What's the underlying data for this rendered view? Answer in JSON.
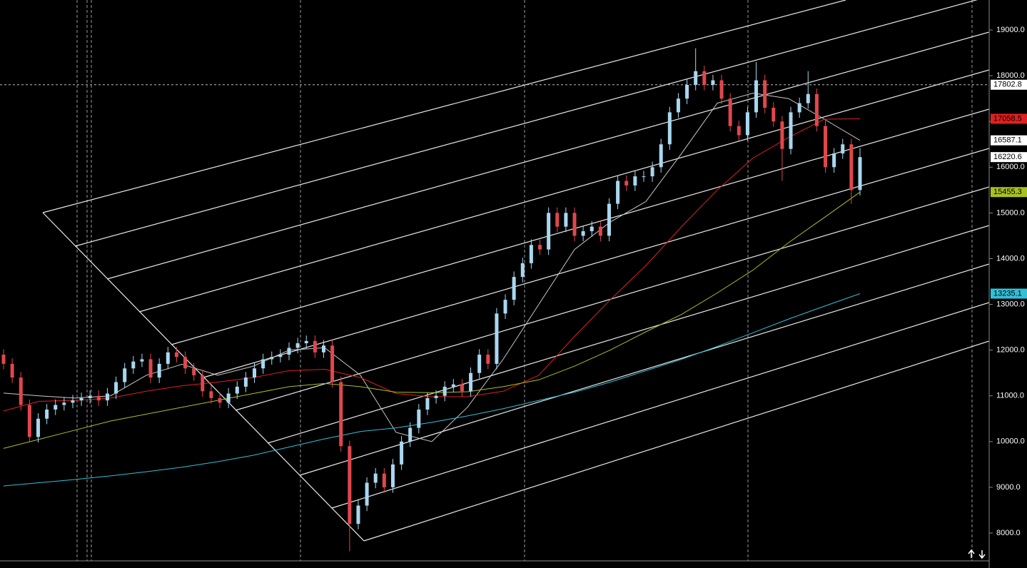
{
  "chart_data": {
    "type": "candlestick",
    "up_color": "#a8d8f0",
    "down_color": "#e0474c",
    "ylim": [
      7391,
      19656
    ],
    "yticks": [
      {
        "value": 8000,
        "label": "8000.0"
      },
      {
        "value": 9000,
        "label": "9000.0"
      },
      {
        "value": 10000,
        "label": "10000.0"
      },
      {
        "value": 11000,
        "label": "11000.0"
      },
      {
        "value": 12000,
        "label": "12000.0"
      },
      {
        "value": 13000,
        "label": "13000.0"
      },
      {
        "value": 14000,
        "label": "14000.0"
      },
      {
        "value": 15000,
        "label": "15000.0"
      },
      {
        "value": 16000,
        "label": "16000.0"
      },
      {
        "value": 17000,
        "label": "17000.0"
      },
      {
        "value": 18000,
        "label": "18000.0"
      },
      {
        "value": 19000,
        "label": "19000.0"
      }
    ],
    "open": [
      11900,
      11700,
      11400,
      10800,
      10100,
      10500,
      10700,
      10800,
      10850,
      10900,
      10950,
      11000,
      10900,
      11050,
      11300,
      11600,
      11750,
      11800,
      11400,
      11700,
      11950,
      11850,
      11600,
      11450,
      11100,
      10950,
      10850,
      11050,
      11200,
      11400,
      11600,
      11800,
      11850,
      11900,
      12050,
      12150,
      12200,
      11950,
      12100,
      11300,
      9900,
      8200,
      8600,
      9100,
      9300,
      9000,
      9500,
      10000,
      10300,
      10700,
      10950,
      11000,
      11200,
      11250,
      11100,
      11500,
      11900,
      11700,
      12800,
      13100,
      13600,
      13900,
      14300,
      14200,
      15000,
      14700,
      15000,
      14500,
      14600,
      14700,
      14500,
      15200,
      15700,
      15600,
      15800,
      15800,
      16000,
      16500,
      17200,
      17500,
      17800,
      18100,
      17800,
      17900,
      17500,
      16900,
      16700,
      17200,
      17900,
      17300,
      17000,
      16400,
      17200,
      17400,
      17600,
      16900,
      16000,
      16300,
      16500,
      15500
    ],
    "high": [
      12020,
      11820,
      11520,
      10920,
      10620,
      10820,
      10920,
      10970,
      11020,
      11070,
      11120,
      11120,
      11170,
      11420,
      11720,
      11870,
      11920,
      11920,
      11820,
      12070,
      12070,
      11970,
      11720,
      11570,
      11220,
      11070,
      11170,
      11320,
      11520,
      11720,
      11920,
      11970,
      12020,
      12170,
      12270,
      12320,
      12320,
      12220,
      12220,
      11420,
      10020,
      8720,
      9220,
      9420,
      9420,
      9620,
      10120,
      10420,
      10820,
      11070,
      11120,
      11320,
      11370,
      11370,
      11620,
      12020,
      12020,
      12920,
      13220,
      13720,
      14020,
      14420,
      14420,
      15120,
      15120,
      15120,
      15120,
      14720,
      14820,
      14820,
      15320,
      15820,
      15820,
      15920,
      15920,
      16120,
      16620,
      17320,
      17620,
      17920,
      18600,
      18220,
      18020,
      18020,
      17620,
      17020,
      17320,
      18300,
      18020,
      17420,
      17120,
      17320,
      17520,
      18100,
      17720,
      17020,
      16420,
      16620,
      16620,
      16420
    ],
    "low": [
      11580,
      11280,
      10680,
      9980,
      9980,
      10380,
      10580,
      10680,
      10730,
      10780,
      10830,
      10780,
      10780,
      10930,
      11180,
      11480,
      11630,
      11280,
      11280,
      11580,
      11730,
      11480,
      11330,
      10980,
      10830,
      10730,
      10730,
      10930,
      11080,
      11280,
      11480,
      11680,
      11730,
      11780,
      11930,
      12030,
      11830,
      11830,
      11180,
      9780,
      7600,
      8080,
      8480,
      8980,
      8880,
      8880,
      9380,
      9880,
      10180,
      10580,
      10830,
      10880,
      11080,
      10980,
      10980,
      11380,
      11580,
      11580,
      12680,
      12980,
      13480,
      13780,
      14080,
      14080,
      14580,
      14580,
      14380,
      14380,
      14480,
      14380,
      14380,
      15080,
      15480,
      15480,
      15680,
      15680,
      15880,
      16380,
      17080,
      17380,
      17680,
      17680,
      17680,
      17380,
      16780,
      16580,
      16580,
      17080,
      17180,
      16880,
      15700,
      16280,
      17080,
      17280,
      16780,
      15880,
      15880,
      16180,
      15200,
      15380
    ],
    "close": [
      11700,
      11400,
      10800,
      10100,
      10500,
      10700,
      10800,
      10850,
      10900,
      10950,
      11000,
      10900,
      11050,
      11300,
      11600,
      11750,
      11800,
      11400,
      11700,
      11950,
      11850,
      11600,
      11450,
      11100,
      10950,
      10850,
      11050,
      11200,
      11400,
      11600,
      11800,
      11850,
      11900,
      12050,
      12150,
      12200,
      11950,
      12100,
      11300,
      9900,
      8200,
      8600,
      9100,
      9300,
      9000,
      9500,
      10000,
      10300,
      10700,
      10950,
      11000,
      11200,
      11250,
      11100,
      11500,
      11900,
      11700,
      12800,
      13100,
      13600,
      13900,
      14300,
      14200,
      15000,
      14700,
      15000,
      14500,
      14600,
      14700,
      14500,
      15200,
      15700,
      15600,
      15800,
      15800,
      16000,
      16500,
      17200,
      17500,
      17800,
      18100,
      17800,
      17900,
      17500,
      16900,
      16700,
      17200,
      17900,
      17300,
      17000,
      16400,
      17200,
      17400,
      17600,
      16900,
      16000,
      16300,
      16500,
      15500,
      16220.6
    ],
    "moving_averages": [
      {
        "color": "#c8c8c8",
        "values": [
          11060,
          11000,
          10950,
          11000,
          11450,
          11690,
          11450,
          11650,
          12000,
          12050,
          11450,
          10200,
          10000,
          10750,
          11800,
          13000,
          14200,
          14800,
          15250,
          16300,
          17400,
          17620,
          17500,
          17050,
          16587.1
        ]
      },
      {
        "color": "#e02020",
        "values": [
          10670,
          10880,
          10900,
          10950,
          11100,
          11220,
          11300,
          11400,
          11550,
          11580,
          11400,
          11050,
          10980,
          10980,
          11100,
          11450,
          12300,
          13100,
          13850,
          14700,
          15500,
          16200,
          16650,
          17050,
          17058.5
        ]
      },
      {
        "color": "#a8c020",
        "values": [
          9850,
          10050,
          10250,
          10450,
          10600,
          10750,
          10900,
          11050,
          11200,
          11270,
          11200,
          11080,
          11070,
          11090,
          11200,
          11350,
          11650,
          12000,
          12400,
          12780,
          13250,
          13750,
          14350,
          14900,
          15455.3
        ]
      },
      {
        "color": "#30c0d8",
        "values": [
          9030,
          9100,
          9170,
          9250,
          9340,
          9440,
          9560,
          9700,
          9880,
          10060,
          10220,
          10300,
          10420,
          10560,
          10720,
          10900,
          11080,
          11300,
          11550,
          11800,
          12080,
          12380,
          12680,
          12960,
          13235.1
        ]
      }
    ],
    "crosshair_price": 17802.8
  }
}
